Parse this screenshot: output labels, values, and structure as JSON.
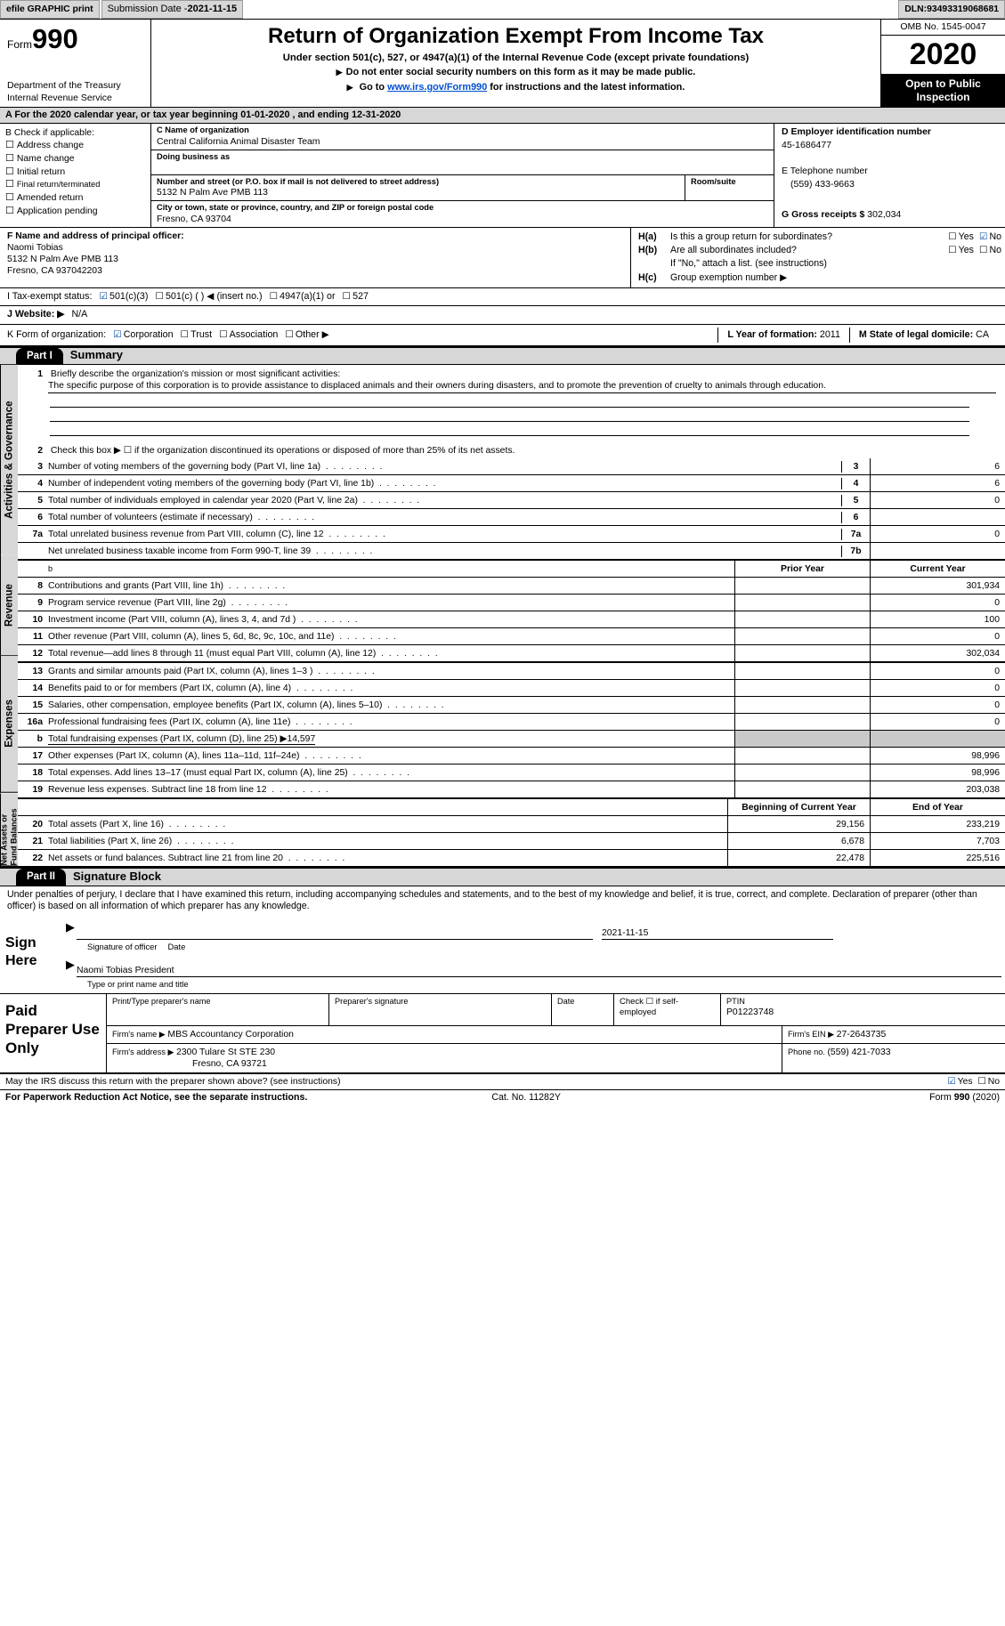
{
  "topbar": {
    "efile": "efile GRAPHIC print",
    "submission_label": "Submission Date - ",
    "submission_date": "2021-11-15",
    "dln_label": "DLN: ",
    "dln": "93493319068681"
  },
  "header": {
    "form_word": "Form",
    "form_num": "990",
    "dept1": "Department of the Treasury",
    "dept2": "Internal Revenue Service",
    "title": "Return of Organization Exempt From Income Tax",
    "subtitle": "Under section 501(c), 527, or 4947(a)(1) of the Internal Revenue Code (except private foundations)",
    "note1": "Do not enter social security numbers on this form as it may be made public.",
    "note2_pre": "Go to ",
    "note2_link": "www.irs.gov/Form990",
    "note2_post": " for instructions and the latest information.",
    "omb": "OMB No. 1545-0047",
    "year": "2020",
    "inspection": "Open to Public Inspection"
  },
  "line_a": "A For the 2020 calendar year, or tax year beginning 01-01-2020     , and ending 12-31-2020",
  "box_b": {
    "title": "B Check if applicable:",
    "items": [
      "Address change",
      "Name change",
      "Initial return",
      "Final return/terminated",
      "Amended return",
      "Application pending"
    ]
  },
  "box_c": {
    "name_label": "C Name of organization",
    "name": "Central California Animal Disaster Team",
    "dba_label": "Doing business as",
    "addr_label": "Number and street (or P.O. box if mail is not delivered to street address)",
    "room_label": "Room/suite",
    "addr": "5132 N Palm Ave PMB 113",
    "city_label": "City or town, state or province, country, and ZIP or foreign postal code",
    "city": "Fresno, CA  93704"
  },
  "box_d": {
    "ein_label": "D Employer identification number",
    "ein": "45-1686477",
    "phone_label": "E Telephone number",
    "phone": "(559) 433-9663",
    "gross_label": "G Gross receipts $ ",
    "gross": "302,034"
  },
  "box_f": {
    "label": "F  Name and address of principal officer:",
    "name": "Naomi Tobias",
    "addr": "5132 N Palm Ave PMB 113",
    "city": "Fresno, CA  937042203"
  },
  "box_h": {
    "ha_k": "H(a)",
    "ha_t": "Is this a group return for subordinates?",
    "hb_k": "H(b)",
    "hb_t": "Are all subordinates included?",
    "hb_note": "If \"No,\" attach a list. (see instructions)",
    "hc_k": "H(c)",
    "hc_t": "Group exemption number ▶",
    "yes": "Yes",
    "no": "No"
  },
  "status": {
    "label": "I   Tax-exempt status:",
    "o1": "501(c)(3)",
    "o2": "501(c) (  ) ◀ (insert no.)",
    "o3": "4947(a)(1) or",
    "o4": "527"
  },
  "website": {
    "label": "J   Website: ▶",
    "value": "N/A"
  },
  "korg": {
    "label": "K Form of organization:",
    "o1": "Corporation",
    "o2": "Trust",
    "o3": "Association",
    "o4": "Other ▶",
    "l_label": "L Year of formation: ",
    "l_val": "2011",
    "m_label": "M State of legal domicile: ",
    "m_val": "CA"
  },
  "parts": {
    "p1": "Part I",
    "p1t": "Summary",
    "p2": "Part II",
    "p2t": "Signature Block"
  },
  "vtabs": {
    "a": "Activities & Governance",
    "r": "Revenue",
    "e": "Expenses",
    "n": "Net Assets or Fund Balances"
  },
  "summary": {
    "l1_num": "1",
    "l1_label": "Briefly describe the organization's mission or most significant activities:",
    "l1_text": "The specific purpose of this corporation is to provide assistance to displaced animals and their owners during disasters, and to promote the prevention of cruelty to animals through education.",
    "l2_num": "2",
    "l2_text": "Check this box ▶ ☐  if the organization discontinued its operations or disposed of more than 25% of its net assets.",
    "rows_gov": [
      {
        "n": "3",
        "t": "Number of voting members of the governing body (Part VI, line 1a)",
        "k": "3",
        "v": "6"
      },
      {
        "n": "4",
        "t": "Number of independent voting members of the governing body (Part VI, line 1b)",
        "k": "4",
        "v": "6"
      },
      {
        "n": "5",
        "t": "Total number of individuals employed in calendar year 2020 (Part V, line 2a)",
        "k": "5",
        "v": "0"
      },
      {
        "n": "6",
        "t": "Total number of volunteers (estimate if necessary)",
        "k": "6",
        "v": ""
      },
      {
        "n": "7a",
        "t": "Total unrelated business revenue from Part VIII, column (C), line 12",
        "k": "7a",
        "v": "0"
      },
      {
        "n": "",
        "t": "Net unrelated business taxable income from Form 990-T, line 39",
        "k": "7b",
        "v": ""
      }
    ],
    "col_headers": {
      "py": "Prior Year",
      "cy": "Current Year",
      "bcy": "Beginning of Current Year",
      "eoy": "End of Year"
    },
    "rows_rev": [
      {
        "n": "8",
        "t": "Contributions and grants (Part VIII, line 1h)",
        "py": "",
        "cy": "301,934"
      },
      {
        "n": "9",
        "t": "Program service revenue (Part VIII, line 2g)",
        "py": "",
        "cy": "0"
      },
      {
        "n": "10",
        "t": "Investment income (Part VIII, column (A), lines 3, 4, and 7d )",
        "py": "",
        "cy": "100"
      },
      {
        "n": "11",
        "t": "Other revenue (Part VIII, column (A), lines 5, 6d, 8c, 9c, 10c, and 11e)",
        "py": "",
        "cy": "0"
      },
      {
        "n": "12",
        "t": "Total revenue—add lines 8 through 11 (must equal Part VIII, column (A), line 12)",
        "py": "",
        "cy": "302,034"
      }
    ],
    "rows_exp": [
      {
        "n": "13",
        "t": "Grants and similar amounts paid (Part IX, column (A), lines 1–3 )",
        "py": "",
        "cy": "0"
      },
      {
        "n": "14",
        "t": "Benefits paid to or for members (Part IX, column (A), line 4)",
        "py": "",
        "cy": "0"
      },
      {
        "n": "15",
        "t": "Salaries, other compensation, employee benefits (Part IX, column (A), lines 5–10)",
        "py": "",
        "cy": "0"
      },
      {
        "n": "16a",
        "t": "Professional fundraising fees (Part IX, column (A), line 11e)",
        "py": "",
        "cy": "0"
      },
      {
        "n": "b",
        "t": "Total fundraising expenses (Part IX, column (D), line 25) ▶14,597",
        "py": "SHADE",
        "cy": "SHADE"
      },
      {
        "n": "17",
        "t": "Other expenses (Part IX, column (A), lines 11a–11d, 11f–24e)",
        "py": "",
        "cy": "98,996"
      },
      {
        "n": "18",
        "t": "Total expenses. Add lines 13–17 (must equal Part IX, column (A), line 25)",
        "py": "",
        "cy": "98,996"
      },
      {
        "n": "19",
        "t": "Revenue less expenses. Subtract line 18 from line 12",
        "py": "",
        "cy": "203,038"
      }
    ],
    "rows_net": [
      {
        "n": "20",
        "t": "Total assets (Part X, line 16)",
        "py": "29,156",
        "cy": "233,219"
      },
      {
        "n": "21",
        "t": "Total liabilities (Part X, line 26)",
        "py": "6,678",
        "cy": "7,703"
      },
      {
        "n": "22",
        "t": "Net assets or fund balances. Subtract line 21 from line 20",
        "py": "22,478",
        "cy": "225,516"
      }
    ]
  },
  "sig": {
    "text": "Under penalties of perjury, I declare that I have examined this return, including accompanying schedules and statements, and to the best of my knowledge and belief, it is true, correct, and complete. Declaration of preparer (other than officer) is based on all information of which preparer has any knowledge.",
    "sign_here": "Sign Here",
    "date": "2021-11-15",
    "cap1": "Signature of officer",
    "cap1b": "Date",
    "name": "Naomi Tobias  President",
    "cap2": "Type or print name and title"
  },
  "paid": {
    "title": "Paid Preparer Use Only",
    "h1": "Print/Type preparer's name",
    "h2": "Preparer's signature",
    "h3": "Date",
    "h4a": "Check ☐  if self-employed",
    "h4b": "PTIN",
    "h4v": "P01223748",
    "r2a": "Firm's name    ▶ ",
    "r2v": "MBS Accountancy Corporation",
    "r2b": "Firm's EIN ▶ ",
    "r2bv": "27-2643735",
    "r3a": "Firm's address ▶ ",
    "r3v1": "2300 Tulare St STE 230",
    "r3v2": "Fresno, CA  93721",
    "r3b": "Phone no. ",
    "r3bv": "(559) 421-7033"
  },
  "footer": {
    "q": "May the IRS discuss this return with the preparer shown above? (see instructions)",
    "yes": "Yes",
    "no": "No",
    "l": "For Paperwork Reduction Act Notice, see the separate instructions.",
    "m": "Cat. No. 11282Y",
    "r_pre": "Form ",
    "r_b": "990",
    "r_post": " (2020)"
  }
}
